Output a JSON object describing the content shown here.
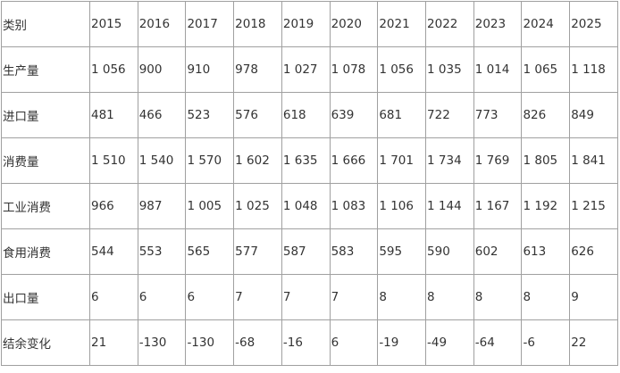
{
  "table": {
    "header": [
      "类别",
      "2015",
      "2016",
      "2017",
      "2018",
      "2019",
      "2020",
      "2021",
      "2022",
      "2023",
      "2024",
      "2025"
    ],
    "rows": [
      [
        "生产量",
        "1 056",
        "900",
        "910",
        "978",
        "1 027",
        "1 078",
        "1 056",
        "1 035",
        "1 014",
        "1 065",
        "1 118"
      ],
      [
        "进口量",
        "481",
        "466",
        "523",
        "576",
        "618",
        "639",
        "681",
        "722",
        "773",
        "826",
        "849"
      ],
      [
        "消费量",
        "1 510",
        "1 540",
        "1 570",
        "1 602",
        "1 635",
        "1 666",
        "1 701",
        "1 734",
        "1 769",
        "1 805",
        "1 841"
      ],
      [
        "工业消费",
        "966",
        "987",
        "1 005",
        "1 025",
        "1 048",
        "1 083",
        "1 106",
        "1 144",
        "1 167",
        "1 192",
        "1 215"
      ],
      [
        "食用消费",
        "544",
        "553",
        "565",
        "577",
        "587",
        "583",
        "595",
        "590",
        "602",
        "613",
        "626"
      ],
      [
        "出口量",
        "6",
        "6",
        "6",
        "7",
        "7",
        "7",
        "8",
        "8",
        "8",
        "8",
        "9"
      ],
      [
        "结余变化",
        "21",
        "-130",
        "-130",
        "-68",
        "-16",
        "6",
        "-19",
        "-49",
        "-64",
        "-6",
        "22"
      ]
    ]
  }
}
